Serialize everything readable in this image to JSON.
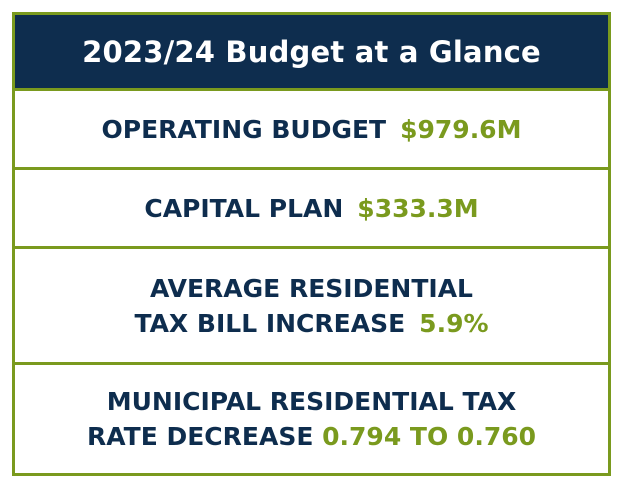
{
  "title": "2023/24 Budget at a Glance",
  "colors": {
    "header_bg": "#0e2d4e",
    "label_text": "#0e2d4e",
    "accent_green": "#7a9a1e",
    "background": "#ffffff"
  },
  "items": [
    {
      "label": "OPERATING BUDGET",
      "value": "$979.6M"
    },
    {
      "label": "CAPITAL PLAN",
      "value": "$333.3M"
    },
    {
      "label_line1": "AVERAGE RESIDENTIAL",
      "label_line2": "TAX BILL INCREASE",
      "value": "5.9%"
    },
    {
      "label_line1": "MUNICIPAL RESIDENTIAL TAX",
      "label_line2": "RATE DECREASE",
      "value": "0.794 TO 0.760"
    }
  ]
}
